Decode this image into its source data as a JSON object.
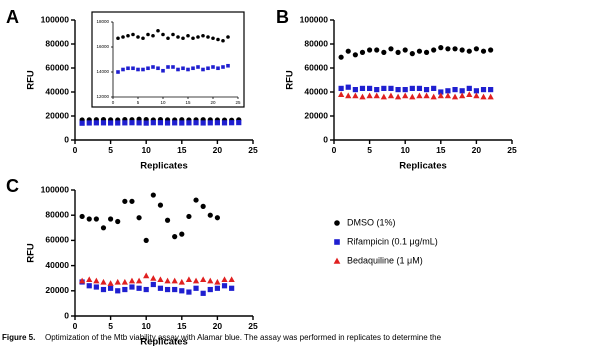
{
  "chart_data": [
    {
      "type": "scatter",
      "panel": "A",
      "xlabel": "Replicates",
      "ylabel": "RFU",
      "x": [
        1,
        2,
        3,
        4,
        5,
        6,
        7,
        8,
        9,
        10,
        11,
        12,
        13,
        14,
        15,
        16,
        17,
        18,
        19,
        20,
        21,
        22,
        23
      ],
      "xlim": [
        0,
        25
      ],
      "xticks": [
        0,
        5,
        10,
        15,
        20,
        25
      ],
      "ylim": [
        0,
        100000
      ],
      "yticks": [
        0,
        20000,
        40000,
        60000,
        80000,
        100000
      ],
      "series": [
        {
          "color": "#000000",
          "marker": "circle",
          "values": [
            16700,
            16800,
            16900,
            17000,
            16800,
            16700,
            17000,
            16900,
            17300,
            17000,
            16700,
            17000,
            16800,
            16700,
            16900,
            16700,
            16800,
            16900,
            16800,
            16700,
            16600,
            16500,
            16800
          ]
        },
        {
          "color": "#1f1fd0",
          "marker": "square",
          "values": [
            14000,
            14200,
            14300,
            14300,
            14200,
            14200,
            14300,
            14400,
            14300,
            14100,
            14400,
            14400,
            14200,
            14300,
            14200,
            14300,
            14400,
            14200,
            14300,
            14400,
            14300,
            14400,
            14500
          ]
        }
      ]
    },
    {
      "type": "scatter",
      "inset": true,
      "x": [
        1,
        2,
        3,
        4,
        5,
        6,
        7,
        8,
        9,
        10,
        11,
        12,
        13,
        14,
        15,
        16,
        17,
        18,
        19,
        20,
        21,
        22,
        23
      ],
      "xlim": [
        0,
        25
      ],
      "xticks": [
        0,
        5,
        10,
        15,
        20,
        25
      ],
      "ylim": [
        12000,
        18000
      ],
      "yticks": [
        12000,
        14000,
        16000,
        18000
      ],
      "series": [
        {
          "color": "#000000",
          "marker": "circle",
          "values": [
            16700,
            16800,
            16900,
            17000,
            16800,
            16700,
            17000,
            16900,
            17300,
            17000,
            16700,
            17000,
            16800,
            16700,
            16900,
            16700,
            16800,
            16900,
            16800,
            16700,
            16600,
            16500,
            16800
          ]
        },
        {
          "color": "#1f1fd0",
          "marker": "square",
          "values": [
            14000,
            14200,
            14300,
            14300,
            14200,
            14200,
            14300,
            14400,
            14300,
            14100,
            14400,
            14400,
            14200,
            14300,
            14200,
            14300,
            14400,
            14200,
            14300,
            14400,
            14300,
            14400,
            14500
          ]
        }
      ]
    },
    {
      "type": "scatter",
      "panel": "B",
      "xlabel": "Replicates",
      "ylabel": "RFU",
      "x": [
        1,
        2,
        3,
        4,
        5,
        6,
        7,
        8,
        9,
        10,
        11,
        12,
        13,
        14,
        15,
        16,
        17,
        18,
        19,
        20,
        21,
        22
      ],
      "xlim": [
        0,
        25
      ],
      "xticks": [
        0,
        5,
        10,
        15,
        20,
        25
      ],
      "ylim": [
        0,
        100000
      ],
      "yticks": [
        0,
        20000,
        40000,
        60000,
        80000,
        100000
      ],
      "series": [
        {
          "color": "#000000",
          "marker": "circle",
          "values": [
            69000,
            74000,
            71000,
            73000,
            75000,
            75000,
            73000,
            76000,
            73000,
            75000,
            72000,
            74000,
            73000,
            75000,
            77000,
            76000,
            76000,
            75000,
            74000,
            76000,
            74000,
            75000
          ]
        },
        {
          "color": "#1f1fd0",
          "marker": "square",
          "values": [
            43000,
            44000,
            42000,
            43000,
            43000,
            42000,
            43000,
            43000,
            42000,
            42000,
            43000,
            43000,
            42000,
            43000,
            40000,
            41000,
            42000,
            41000,
            43000,
            41000,
            42000,
            42000
          ]
        },
        {
          "color": "#e02020",
          "marker": "triangle",
          "values": [
            38000,
            37000,
            37000,
            36000,
            37000,
            37000,
            36000,
            37000,
            36000,
            37000,
            36000,
            37000,
            37000,
            36000,
            37000,
            37000,
            36000,
            37000,
            38000,
            37000,
            36000,
            36000
          ]
        }
      ]
    },
    {
      "type": "scatter",
      "panel": "C",
      "xlabel": "Replicates",
      "ylabel": "RFU",
      "legend": "right",
      "x": [
        1,
        2,
        3,
        4,
        5,
        6,
        7,
        8,
        9,
        10,
        11,
        12,
        13,
        14,
        15,
        16,
        17,
        18,
        19,
        20,
        21,
        22
      ],
      "xlim": [
        0,
        25
      ],
      "xticks": [
        0,
        5,
        10,
        15,
        20,
        25
      ],
      "ylim": [
        0,
        100000
      ],
      "yticks": [
        0,
        20000,
        40000,
        60000,
        80000,
        100000
      ],
      "series": [
        {
          "name": "DMSO (1%)",
          "color": "#000000",
          "marker": "circle",
          "values": [
            79000,
            77000,
            77000,
            70000,
            77000,
            75000,
            91000,
            91000,
            78000,
            60000,
            96000,
            88000,
            76000,
            63000,
            65000,
            79000,
            92000,
            87000,
            80000,
            78000,
            null,
            null
          ]
        },
        {
          "name": "Rifampicin (0.1 μg/mL)",
          "color": "#1f1fd0",
          "marker": "square",
          "values": [
            27000,
            24000,
            23000,
            21000,
            22000,
            20000,
            21000,
            23000,
            22000,
            21000,
            25000,
            22000,
            21000,
            21000,
            20000,
            19000,
            22000,
            18000,
            21000,
            22000,
            24000,
            22000
          ]
        },
        {
          "name": "Bedaquiline (1 μM)",
          "color": "#e02020",
          "marker": "triangle",
          "values": [
            28000,
            29000,
            28000,
            27000,
            26000,
            27000,
            27000,
            28000,
            28000,
            32000,
            30000,
            29000,
            28000,
            28000,
            27000,
            29000,
            28000,
            29000,
            28000,
            27000,
            29000,
            29000
          ]
        }
      ]
    }
  ],
  "caption": {
    "label": "Figure 5.",
    "text": "Optimization of the Mtb viability assay with Alamar blue. The assay was performed in replicates to determine the"
  }
}
